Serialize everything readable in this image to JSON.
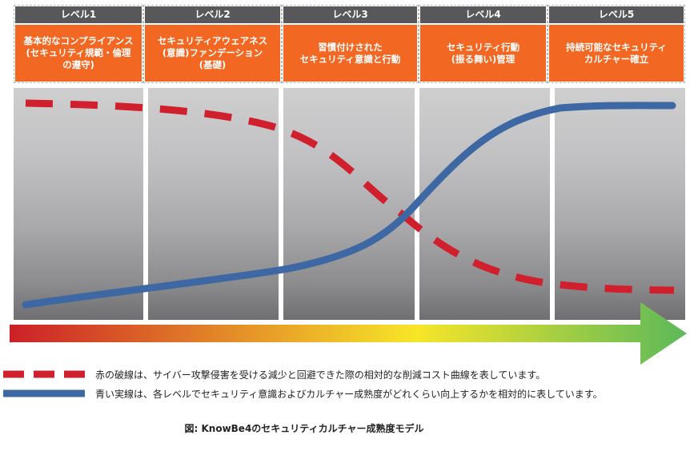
{
  "levels": [
    {
      "label": "レベル1",
      "description": "基本的なコンプライアンス\n(セキュリティ規範・倫理\nの遵守)"
    },
    {
      "label": "レベル2",
      "description": "セキュリティアウェアネス\n(意識)ファンデーション\n(基礎)"
    },
    {
      "label": "レベル3",
      "description": "習慣付けされた\nセキュリティ意識と行動"
    },
    {
      "label": "レベル4",
      "description": "セキュリティ行動\n(振る舞い)管理"
    },
    {
      "label": "レベル5",
      "description": "持続可能なセキュリティ\nカルチャー確立"
    }
  ],
  "legend": {
    "red_dashed": "赤の破線は、サイバー攻撃侵害を受ける減少と回避できた際の相対的な削減コスト曲線を表しています。",
    "blue_solid": "青い実線は、各レベルでセキュリティ意識およびカルチャー成熟度がどれくらい向上するかを相対的に表しています。"
  },
  "caption": "図:  KnowBe4のセキュリティカルチャー成熟度モデル",
  "colors": {
    "header_gray": "#58585a",
    "header_orange": "#f26722",
    "red_curve": "#d0202e",
    "blue_curve": "#3d68a3",
    "arrow_start": "#cc2027",
    "arrow_mid": "#f7e628",
    "arrow_end": "#5cb95a"
  }
}
